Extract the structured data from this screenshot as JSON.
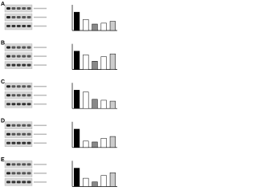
{
  "chart_data": [
    {
      "type": "bar",
      "panel_label": "A",
      "categories": [
        null,
        null,
        null,
        null,
        null
      ],
      "values": [
        1.0,
        0.6,
        0.35,
        0.4,
        0.5
      ],
      "colors": [
        "#000000",
        "#ffffff",
        "#888888",
        "#ffffff",
        "#cccccc"
      ],
      "ylim": [
        0,
        1.4
      ]
    },
    {
      "type": "bar",
      "panel_label": "B",
      "categories": [
        null,
        null,
        null,
        null,
        null
      ],
      "values": [
        1.0,
        0.8,
        0.45,
        0.7,
        0.85
      ],
      "colors": [
        "#000000",
        "#ffffff",
        "#888888",
        "#ffffff",
        "#cccccc"
      ],
      "ylim": [
        0,
        1.4
      ]
    },
    {
      "type": "bar",
      "panel_label": "C",
      "categories": [
        null,
        null,
        null,
        null,
        null
      ],
      "values": [
        1.0,
        0.9,
        0.5,
        0.45,
        0.4
      ],
      "colors": [
        "#000000",
        "#ffffff",
        "#888888",
        "#ffffff",
        "#cccccc"
      ],
      "ylim": [
        0,
        1.4
      ]
    },
    {
      "type": "bar",
      "panel_label": "D",
      "categories": [
        null,
        null,
        null,
        null,
        null
      ],
      "values": [
        1.0,
        0.35,
        0.3,
        0.5,
        0.6
      ],
      "colors": [
        "#000000",
        "#ffffff",
        "#888888",
        "#ffffff",
        "#cccccc"
      ],
      "ylim": [
        0,
        1.4
      ]
    },
    {
      "type": "bar",
      "panel_label": "E",
      "categories": [
        null,
        null,
        null,
        null,
        null
      ],
      "values": [
        1.0,
        0.45,
        0.25,
        0.6,
        0.75
      ],
      "colors": [
        "#000000",
        "#ffffff",
        "#888888",
        "#ffffff",
        "#cccccc"
      ],
      "ylim": [
        0,
        1.4
      ]
    }
  ]
}
